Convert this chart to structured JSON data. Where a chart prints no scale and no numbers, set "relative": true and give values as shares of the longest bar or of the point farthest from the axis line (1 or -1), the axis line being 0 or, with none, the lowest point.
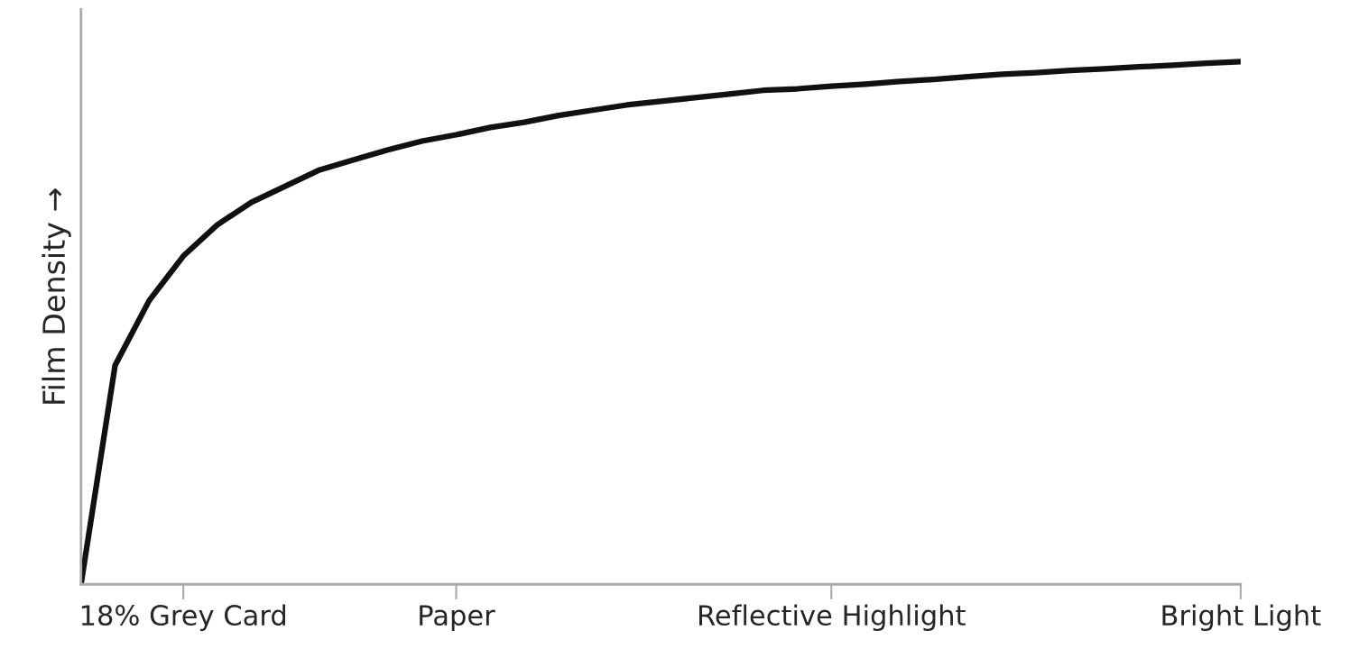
{
  "chart_data": {
    "type": "line",
    "relative": true,
    "ylabel": "Film Density →",
    "color": "#111111",
    "categories": [
      null,
      null,
      null,
      "18% Grey Card",
      null,
      null,
      null,
      null,
      null,
      null,
      null,
      "Paper",
      null,
      null,
      null,
      null,
      null,
      null,
      null,
      null,
      null,
      null,
      "Reflective Highlight",
      null,
      null,
      null,
      null,
      null,
      null,
      null,
      null,
      null,
      null,
      null,
      "Bright Light"
    ],
    "values": [
      0,
      0.419,
      0.543,
      0.628,
      0.688,
      0.731,
      0.762,
      0.793,
      0.812,
      0.831,
      0.848,
      0.86,
      0.874,
      0.884,
      0.897,
      0.907,
      0.917,
      0.924,
      0.931,
      0.938,
      0.945,
      0.948,
      0.953,
      0.957,
      0.962,
      0.966,
      0.971,
      0.976,
      0.979,
      0.983,
      0.986,
      0.99,
      0.993,
      0.997,
      1.0
    ],
    "tick_labels": "x",
    "grid": false,
    "legend": false
  }
}
